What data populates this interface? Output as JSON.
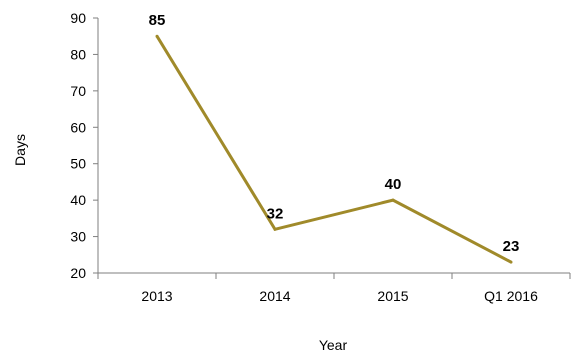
{
  "chart_data": {
    "type": "line",
    "categories": [
      "2013",
      "2014",
      "2015",
      "Q1 2016"
    ],
    "series": [
      {
        "values": [
          85,
          32,
          40,
          23
        ]
      }
    ],
    "data_labels": [
      "85",
      "32",
      "40",
      "23"
    ],
    "xlabel": "Year",
    "ylabel": "Days",
    "ylim": [
      20,
      90
    ],
    "yticks": [
      "20",
      "30",
      "40",
      "50",
      "60",
      "70",
      "80",
      "90"
    ],
    "grid": false,
    "legend": "none",
    "line_color": "#a08a2a"
  }
}
